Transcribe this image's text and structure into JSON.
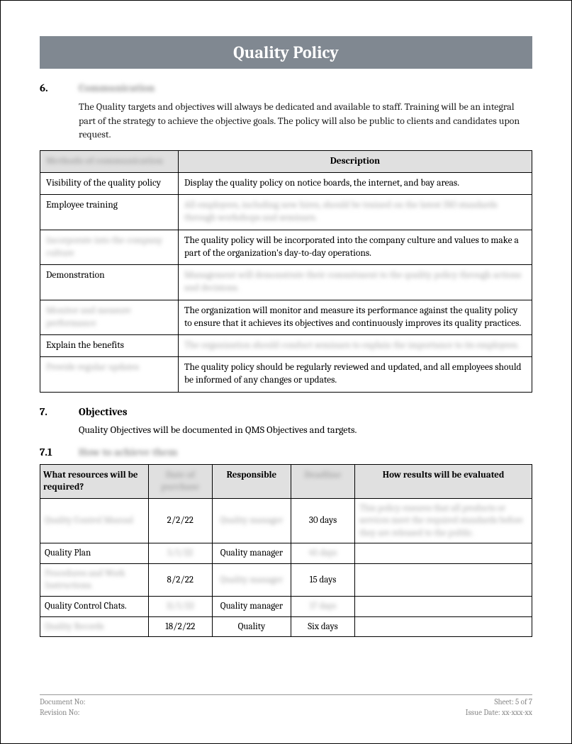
{
  "title": "Quality Policy",
  "section6": {
    "num": "6.",
    "title": "Communication",
    "intro": "The Quality targets and objectives will always be dedicated and available to staff. Training will be an integral part of the strategy to achieve the objective goals. The policy will also be public to clients and candidates upon request.",
    "headers": [
      "Methods of communication",
      "Description"
    ],
    "rows": [
      {
        "method": "Visibility of the quality policy",
        "mblur": false,
        "desc": "Display the quality policy on notice boards, the internet, and bay areas.",
        "dblur": false
      },
      {
        "method": "Employee training",
        "mblur": false,
        "desc": "All employees, including new hires, should be trained on the latest ISO standards through workshops and seminars.",
        "dblur": true
      },
      {
        "method": "Incorporate into the company culture",
        "mblur": true,
        "desc": "The quality policy will be incorporated into the company culture and values to make a part of the organization's day-to-day operations.",
        "dblur": false
      },
      {
        "method": "Demonstration",
        "mblur": false,
        "desc": "Management will demonstrate their commitment to the quality policy through actions and decisions.",
        "dblur": true
      },
      {
        "method": "Monitor and measure performance",
        "mblur": true,
        "desc": "The organization will monitor and measure its performance against the quality policy to ensure that it achieves its objectives and continuously improves its quality practices.",
        "dblur": false
      },
      {
        "method": "Explain the benefits",
        "mblur": false,
        "desc": "The organization should conduct seminars to explain the importance to its employees.",
        "dblur": true
      },
      {
        "method": "Provide regular updates",
        "mblur": true,
        "desc": "The quality policy should be regularly reviewed and updated, and all employees should be informed of any changes or updates.",
        "dblur": false
      }
    ]
  },
  "section7": {
    "num": "7.",
    "title": "Objectives",
    "intro": "Quality Objectives will be documented in QMS Objectives and targets."
  },
  "section71": {
    "num": "7.1",
    "title": "How to achieve them",
    "headers": [
      "What resources will be required?",
      "Date of purchase",
      "Responsible",
      "Deadline",
      "How results will be evaluated"
    ],
    "hblur": [
      false,
      true,
      false,
      true,
      false
    ],
    "rows": [
      {
        "c": [
          "Quality Control Manual",
          "2/2/22",
          "Quality manager",
          "30 days",
          "This policy ensures that all products or services meet the required standards before they are released to the public."
        ],
        "b": [
          true,
          false,
          true,
          false,
          true
        ]
      },
      {
        "c": [
          "Quality Plan",
          "5/1/22",
          "Quality manager",
          "45 days",
          ""
        ],
        "b": [
          false,
          true,
          false,
          true,
          false
        ]
      },
      {
        "c": [
          "Procedures and Work Instructions.",
          "8/2/22",
          "Quality manager",
          "15 days",
          ""
        ],
        "b": [
          true,
          false,
          true,
          false,
          false
        ]
      },
      {
        "c": [
          "Quality Control Chats.",
          "11/1/22",
          "Quality manager",
          "17 days",
          ""
        ],
        "b": [
          false,
          true,
          false,
          true,
          false
        ]
      },
      {
        "c": [
          "Quality Records",
          "18/2/22",
          "Quality",
          "Six days",
          ""
        ],
        "b": [
          true,
          false,
          false,
          false,
          false
        ]
      }
    ],
    "colw": [
      "22%",
      "13%",
      "16%",
      "13%",
      "36%"
    ]
  },
  "footer": {
    "doc": "Document No:",
    "rev": "Revision No:",
    "sheet": "Sheet: 5 of 7",
    "issue": "Issue Date: xx-xxx-xx"
  }
}
